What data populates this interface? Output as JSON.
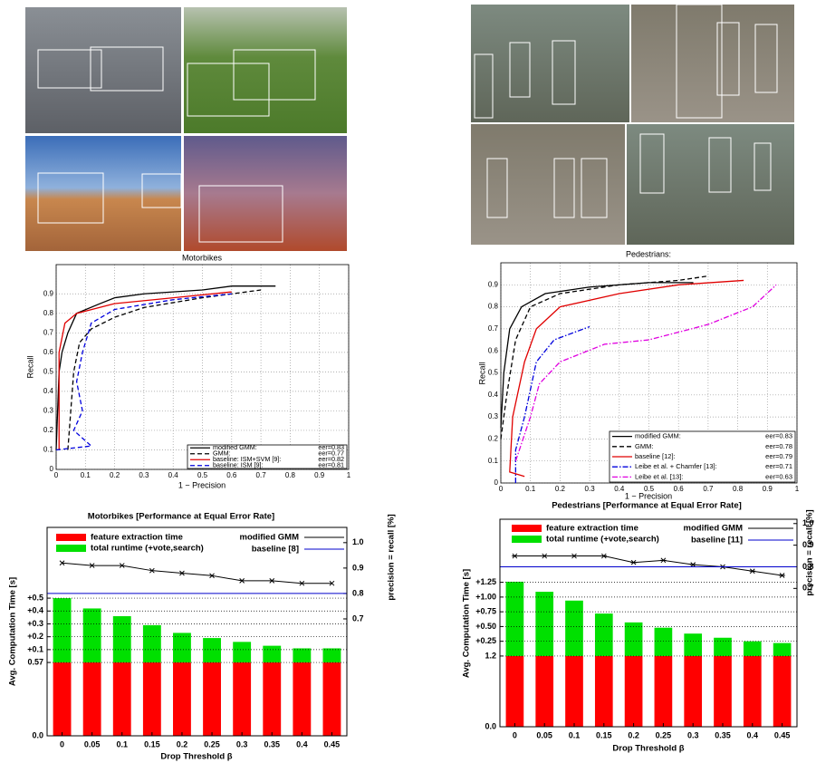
{
  "chart_data": [
    {
      "type": "line",
      "title": "Motorbikes",
      "x_label": "1 − Precision",
      "y_label": "Recall",
      "xlim": [
        0,
        1
      ],
      "ylim": [
        0,
        1.05
      ],
      "xticks": [
        0,
        0.1,
        0.2,
        0.3,
        0.4,
        0.5,
        0.6,
        0.7,
        0.8,
        0.9,
        1
      ],
      "yticks": [
        0,
        0.1,
        0.2,
        0.3,
        0.4,
        0.5,
        0.6,
        0.7,
        0.8,
        0.9
      ],
      "grid": true,
      "legend": "lower right",
      "series": [
        {
          "name": "modified GMM:",
          "eer": "eer=0.83",
          "color": "#000000",
          "dash": "solid",
          "x": [
            0,
            0.01,
            0.02,
            0.04,
            0.07,
            0.15,
            0.2,
            0.3,
            0.5,
            0.6,
            0.75
          ],
          "y": [
            0.1,
            0.5,
            0.6,
            0.7,
            0.8,
            0.85,
            0.88,
            0.9,
            0.92,
            0.94,
            0.94
          ]
        },
        {
          "name": "GMM:",
          "eer": "eer=0.77",
          "color": "#000000",
          "dash": "dashed",
          "x": [
            0.04,
            0.05,
            0.06,
            0.08,
            0.12,
            0.2,
            0.3,
            0.5,
            0.7
          ],
          "y": [
            0.1,
            0.3,
            0.5,
            0.65,
            0.72,
            0.78,
            0.83,
            0.88,
            0.92
          ]
        },
        {
          "name": "baseline: ISM+SVM [9]:",
          "eer": "eer=0.82",
          "color": "#e00000",
          "dash": "solid",
          "x": [
            0.01,
            0.01,
            0.03,
            0.07,
            0.2,
            0.4,
            0.6
          ],
          "y": [
            0.1,
            0.6,
            0.75,
            0.8,
            0.85,
            0.88,
            0.91
          ]
        },
        {
          "name": "baseline: ISM [9]:",
          "eer": "eer=0.81",
          "color": "#0000dd",
          "dash": "dashed",
          "x": [
            0,
            0.12,
            0.06,
            0.09,
            0.07,
            0.09,
            0.12,
            0.2,
            0.4,
            0.6
          ],
          "y": [
            0.1,
            0.12,
            0.2,
            0.3,
            0.45,
            0.6,
            0.75,
            0.82,
            0.87,
            0.9
          ]
        }
      ]
    },
    {
      "type": "line",
      "title": "Pedestrians:",
      "x_label": "1 − Precision",
      "y_label": "Recall",
      "xlim": [
        0,
        1
      ],
      "ylim": [
        0,
        1
      ],
      "xticks": [
        0,
        0.1,
        0.2,
        0.3,
        0.4,
        0.5,
        0.6,
        0.7,
        0.8,
        0.9,
        1
      ],
      "yticks": [
        0,
        0.1,
        0.2,
        0.3,
        0.4,
        0.5,
        0.6,
        0.7,
        0.8,
        0.9
      ],
      "grid": true,
      "legend": "lower right",
      "series": [
        {
          "name": "modified GMM:",
          "eer": "eer=0.83",
          "color": "#000000",
          "dash": "solid",
          "x": [
            0,
            0.01,
            0.03,
            0.07,
            0.15,
            0.3,
            0.5,
            0.65
          ],
          "y": [
            0.25,
            0.5,
            0.7,
            0.8,
            0.86,
            0.89,
            0.91,
            0.91
          ]
        },
        {
          "name": "GMM:",
          "eer": "eer=0.78",
          "color": "#000000",
          "dash": "dashed",
          "x": [
            0,
            0.02,
            0.05,
            0.1,
            0.2,
            0.4,
            0.6,
            0.7
          ],
          "y": [
            0.2,
            0.4,
            0.65,
            0.8,
            0.86,
            0.9,
            0.92,
            0.94
          ]
        },
        {
          "name": "baseline [12]:",
          "eer": "eer=0.79",
          "color": "#e00000",
          "dash": "solid",
          "x": [
            0.08,
            0.03,
            0.04,
            0.08,
            0.12,
            0.2,
            0.4,
            0.6,
            0.82
          ],
          "y": [
            0.03,
            0.05,
            0.3,
            0.55,
            0.7,
            0.8,
            0.86,
            0.9,
            0.92
          ]
        },
        {
          "name": "Leibe et al. + Chamfer [13]:",
          "eer": "eer=0.71",
          "color": "#0000dd",
          "dash": "dashdot",
          "x": [
            0.05,
            0.05,
            0.08,
            0.12,
            0.18,
            0.3
          ],
          "y": [
            0,
            0.15,
            0.3,
            0.55,
            0.65,
            0.71
          ]
        },
        {
          "name": "Leibe et al. [13]:",
          "eer": "eer=0.63",
          "color": "#e000e0",
          "dash": "dashdot",
          "x": [
            0.05,
            0.1,
            0.13,
            0.2,
            0.35,
            0.5,
            0.7,
            0.85,
            0.93
          ],
          "y": [
            0.1,
            0.3,
            0.45,
            0.55,
            0.63,
            0.65,
            0.72,
            0.8,
            0.9
          ]
        }
      ]
    },
    {
      "type": "bar",
      "title": "Motorbikes [Performance at Equal Error Rate]",
      "x_label": "Drop Threshold β",
      "y_label": "Avg. Computation Time [s]",
      "y2_label": "precision = recall [%]",
      "categories": [
        "0",
        "0.05",
        "0.1",
        "0.15",
        "0.2",
        "0.25",
        "0.3",
        "0.35",
        "0.4",
        "0.45"
      ],
      "ylim": [
        0,
        1.62
      ],
      "yticks": [
        {
          "value": 0,
          "label": "0.0"
        },
        0.57,
        {
          "value": 0.67,
          "label": "+0.1"
        },
        {
          "value": 0.77,
          "label": "+0.2"
        },
        {
          "value": 0.87,
          "label": "+0.3"
        },
        {
          "value": 0.97,
          "label": "+0.4"
        },
        {
          "value": 1.07,
          "label": "+0.5"
        }
      ],
      "y2lim": [
        0.24,
        1.06
      ],
      "y2ticks": [
        0.7,
        0.8,
        0.9,
        {
          "value": 1,
          "label": "1.0"
        }
      ],
      "grid": true,
      "series": [
        {
          "name": "feature extraction time",
          "color": "#ff0000",
          "values": [
            0.57,
            0.57,
            0.57,
            0.57,
            0.57,
            0.57,
            0.57,
            0.57,
            0.57,
            0.57
          ]
        },
        {
          "name": "total runtime (+vote,search)",
          "color": "#00e000",
          "values": [
            0.5,
            0.42,
            0.36,
            0.29,
            0.23,
            0.19,
            0.16,
            0.13,
            0.11,
            0.11
          ]
        },
        {
          "name": "modified GMM",
          "color": "#000000",
          "axis": "y2",
          "marker": "x",
          "values": [
            0.92,
            0.91,
            0.91,
            0.89,
            0.88,
            0.87,
            0.85,
            0.85,
            0.84,
            0.84
          ]
        },
        {
          "name": "baseline [8]",
          "color": "#0000cc",
          "axis": "y2",
          "value": 0.8
        }
      ]
    },
    {
      "type": "bar",
      "title": "Pedestrians [Performance at Equal Error Rate]",
      "x_label": "Drop Threshold β",
      "y_label": "Avg. Computation Time [s]",
      "y2_label": "precision = recall [%]",
      "categories": [
        "0",
        "0.05",
        "0.1",
        "0.15",
        "0.2",
        "0.25",
        "0.3",
        "0.35",
        "0.4",
        "0.45"
      ],
      "ylim": [
        0,
        3.52
      ],
      "yticks": [
        {
          "value": 0,
          "label": "0.0"
        },
        1.2,
        {
          "value": 1.45,
          "label": "+0.25"
        },
        {
          "value": 1.7,
          "label": "+0.50"
        },
        {
          "value": 1.95,
          "label": "+0.75"
        },
        {
          "value": 2.2,
          "label": "+1.00"
        },
        {
          "value": 2.45,
          "label": "+1.25"
        }
      ],
      "y2lim": [
        0.06,
        1.02
      ],
      "y2ticks": [
        0.7,
        0.8,
        0.9,
        {
          "value": 1,
          "label": "1.0"
        }
      ],
      "grid": true,
      "series": [
        {
          "name": "feature extraction time",
          "color": "#ff0000",
          "values": [
            1.2,
            1.2,
            1.2,
            1.2,
            1.2,
            1.2,
            1.2,
            1.2,
            1.2,
            1.2
          ]
        },
        {
          "name": "total runtime (+vote,search)",
          "color": "#00e000",
          "values": [
            1.26,
            1.09,
            0.94,
            0.72,
            0.57,
            0.48,
            0.38,
            0.31,
            0.25,
            0.22
          ]
        },
        {
          "name": "modified GMM",
          "color": "#000000",
          "axis": "y2",
          "marker": "*",
          "values": [
            0.85,
            0.85,
            0.85,
            0.85,
            0.82,
            0.83,
            0.81,
            0.8,
            0.78,
            0.76
          ]
        },
        {
          "name": "baseline [11]",
          "color": "#0000cc",
          "axis": "y2",
          "value": 0.8
        }
      ]
    }
  ]
}
